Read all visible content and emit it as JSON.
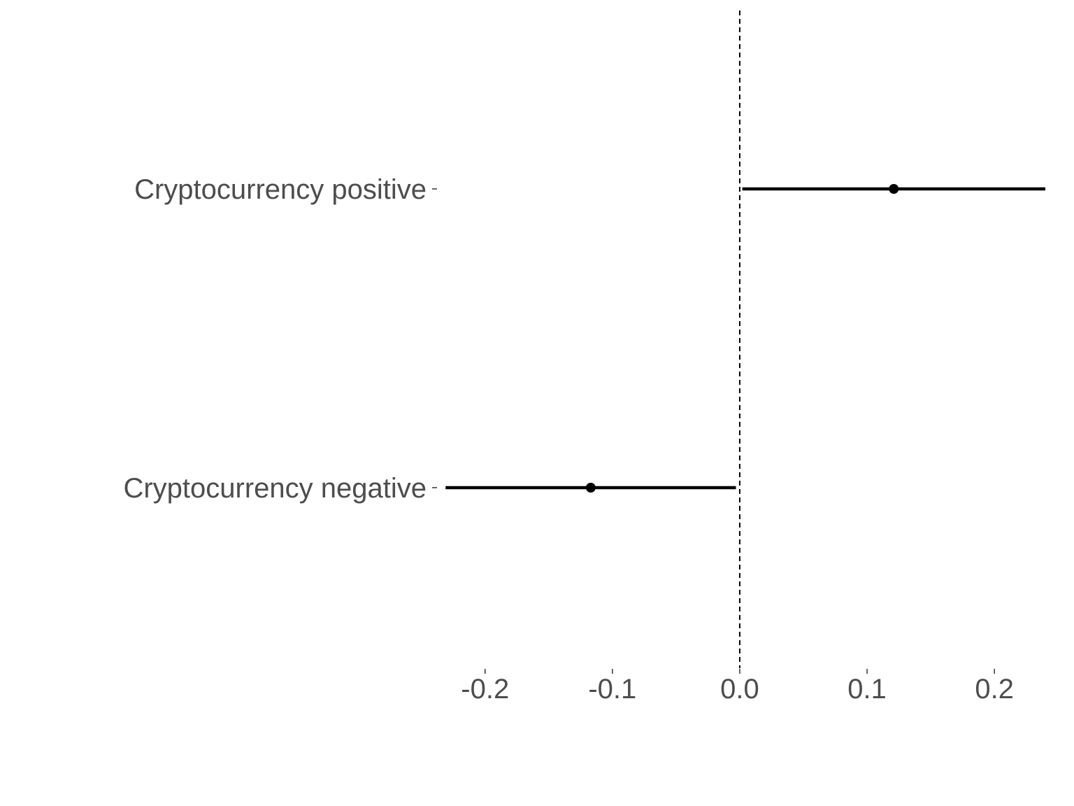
{
  "chart_data": {
    "type": "scatter",
    "subtype": "coefficient-plot",
    "title": "",
    "xlabel": "",
    "ylabel": "",
    "xlim": [
      -0.235,
      0.24
    ],
    "x_ticks": [
      -0.2,
      -0.1,
      0.0,
      0.1,
      0.2
    ],
    "x_tick_labels": [
      "-0.2",
      "-0.1",
      "0.0",
      "0.1",
      "0.2"
    ],
    "reference_line": {
      "x": 0.0,
      "style": "dashed"
    },
    "grid": false,
    "legend": "none",
    "categories": [
      "Cryptocurrency positive",
      "Cryptocurrency negative"
    ],
    "points": [
      {
        "label": "Cryptocurrency positive",
        "estimate": 0.121,
        "ci_low": 0.002,
        "ci_high": 0.24
      },
      {
        "label": "Cryptocurrency negative",
        "estimate": -0.117,
        "ci_low": -0.231,
        "ci_high": -0.003
      }
    ],
    "colors": {
      "marks": "#000000",
      "text": "#4d4d4d",
      "ticks": "#333333"
    }
  }
}
